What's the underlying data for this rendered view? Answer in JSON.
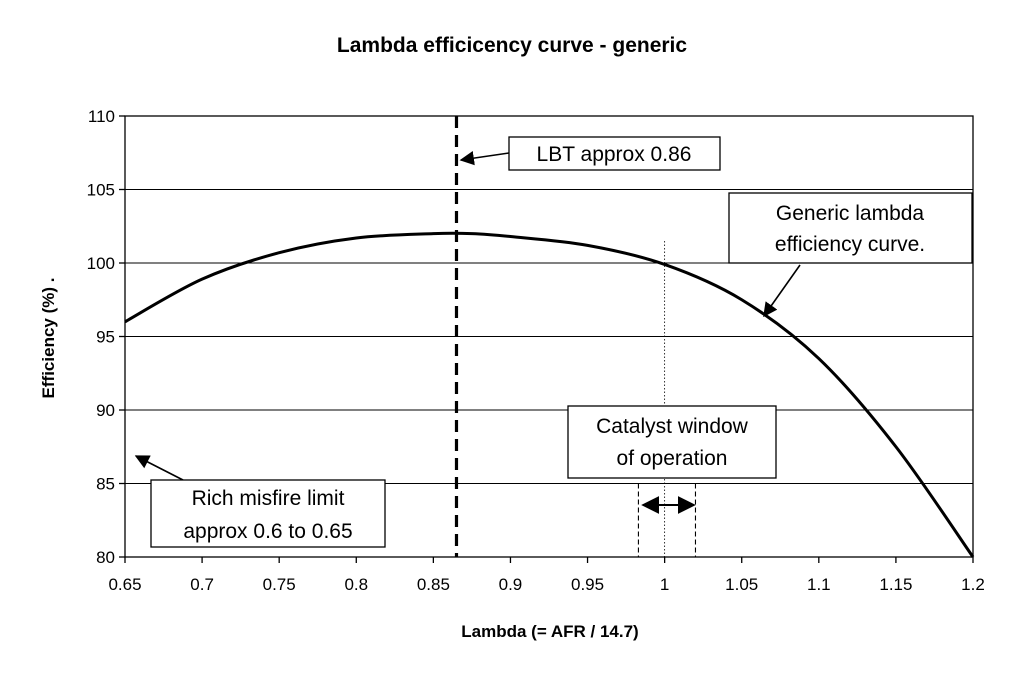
{
  "chart_data": {
    "type": "line",
    "title": "Lambda efficicency curve - generic",
    "xlabel": "Lambda (= AFR / 14.7)",
    "ylabel": "Efficiency (%)  .",
    "xlim": [
      0.65,
      1.2
    ],
    "ylim": [
      80,
      110
    ],
    "xticks": [
      0.65,
      0.7,
      0.75,
      0.8,
      0.85,
      0.9,
      0.95,
      1,
      1.05,
      1.1,
      1.15,
      1.2
    ],
    "xtick_labels": [
      "0.65",
      "0.7",
      "0.75",
      "0.8",
      "0.85",
      "0.9",
      "0.95",
      "1",
      "1.05",
      "1.1",
      "1.15",
      "1.2"
    ],
    "yticks": [
      80,
      85,
      90,
      95,
      100,
      105,
      110
    ],
    "ytick_labels": [
      "80",
      "85",
      "90",
      "95",
      "100",
      "105",
      "110"
    ],
    "grid": "horizontal",
    "series": [
      {
        "x": [
          0.65,
          0.7,
          0.75,
          0.8,
          0.85,
          0.875,
          0.9,
          0.95,
          1.0,
          1.05,
          1.1,
          1.15,
          1.2
        ],
        "y": [
          96.0,
          98.9,
          100.7,
          101.7,
          102.0,
          102.0,
          101.8,
          101.2,
          99.9,
          97.5,
          93.5,
          87.5,
          80.0
        ]
      }
    ],
    "reference_lines": [
      {
        "x": 0.865,
        "style": "dashed-thick"
      },
      {
        "x": 1.0,
        "style": "dotted-thin",
        "y_top": 101.5
      },
      {
        "x": 0.983,
        "style": "dashed-thin",
        "y_top": 85
      },
      {
        "x": 1.02,
        "style": "dashed-thin",
        "y_top": 85
      }
    ],
    "annotations": [
      {
        "id": "lbt",
        "lines": [
          "LBT approx 0.86"
        ]
      },
      {
        "id": "generic",
        "lines": [
          "Generic lambda",
          "efficiency curve."
        ]
      },
      {
        "id": "catalyst",
        "lines": [
          "Catalyst window",
          "of operation"
        ]
      },
      {
        "id": "misfire",
        "lines": [
          "Rich misfire limit",
          "approx 0.6 to 0.65"
        ]
      }
    ]
  }
}
